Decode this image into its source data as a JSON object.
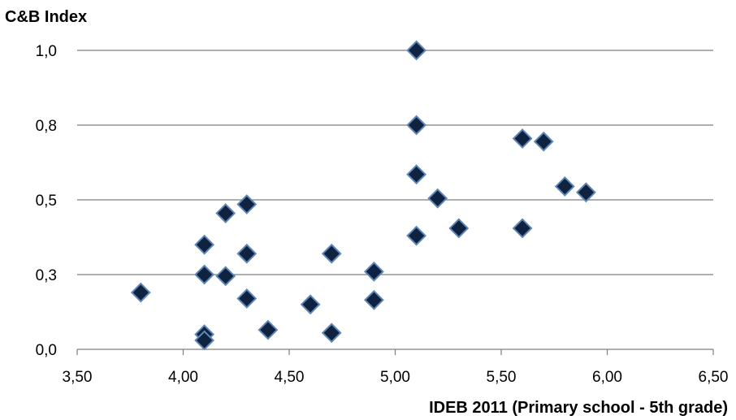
{
  "chart_data": {
    "type": "scatter",
    "ylabel": "C&B Index",
    "xlabel": "IDEB 2011  (Primary school - 5th grade)",
    "xlim": [
      3.5,
      6.5
    ],
    "ylim": [
      0.0,
      1.0
    ],
    "x_ticks": [
      "3,50",
      "4,00",
      "4,50",
      "5,00",
      "5,50",
      "6,00",
      "6,50"
    ],
    "y_ticks": [
      "0,0",
      "0,3",
      "0,5",
      "0,8",
      "1,0"
    ],
    "grid": "horizontal",
    "legend": "none",
    "marker": "diamond",
    "colors": {
      "marker_fill": "#0f2340",
      "marker_edge": "#5f86b7",
      "grid": "#7f7f7f",
      "axis": "#7f7f7f"
    },
    "points": [
      {
        "x": 3.8,
        "y": 0.19
      },
      {
        "x": 4.1,
        "y": 0.35
      },
      {
        "x": 4.1,
        "y": 0.25
      },
      {
        "x": 4.1,
        "y": 0.05
      },
      {
        "x": 4.1,
        "y": 0.03
      },
      {
        "x": 4.2,
        "y": 0.455
      },
      {
        "x": 4.2,
        "y": 0.245
      },
      {
        "x": 4.3,
        "y": 0.485
      },
      {
        "x": 4.3,
        "y": 0.32
      },
      {
        "x": 4.3,
        "y": 0.17
      },
      {
        "x": 4.4,
        "y": 0.065
      },
      {
        "x": 4.6,
        "y": 0.15
      },
      {
        "x": 4.7,
        "y": 0.32
      },
      {
        "x": 4.7,
        "y": 0.055
      },
      {
        "x": 4.9,
        "y": 0.26
      },
      {
        "x": 4.9,
        "y": 0.165
      },
      {
        "x": 5.1,
        "y": 1.0
      },
      {
        "x": 5.1,
        "y": 0.75
      },
      {
        "x": 5.1,
        "y": 0.585
      },
      {
        "x": 5.1,
        "y": 0.38
      },
      {
        "x": 5.2,
        "y": 0.505
      },
      {
        "x": 5.3,
        "y": 0.405
      },
      {
        "x": 5.6,
        "y": 0.705
      },
      {
        "x": 5.6,
        "y": 0.405
      },
      {
        "x": 5.7,
        "y": 0.695
      },
      {
        "x": 5.8,
        "y": 0.545
      },
      {
        "x": 5.9,
        "y": 0.525
      }
    ]
  }
}
